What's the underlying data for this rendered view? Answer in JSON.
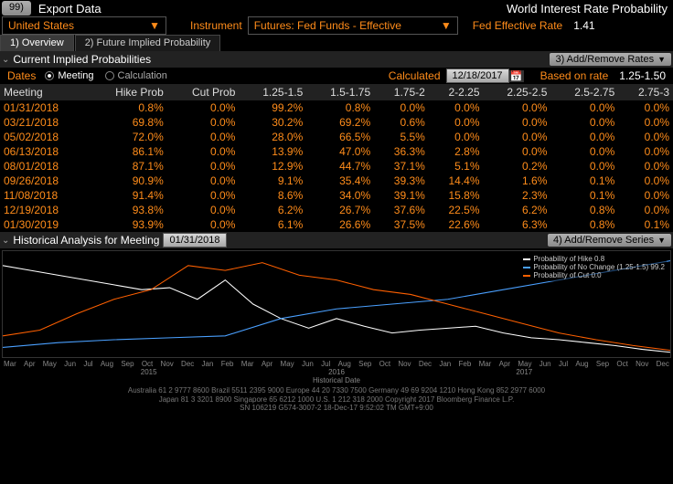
{
  "topbar": {
    "export_btn": "99)",
    "export_label": "Export Data",
    "title": "World Interest Rate Probability"
  },
  "controls": {
    "country": "United States",
    "instrument_label": "Instrument",
    "instrument_value": "Futures: Fed Funds - Effective",
    "rate_label": "Fed Effective Rate",
    "rate_value": "1.41"
  },
  "tabs": {
    "t1": "1) Overview",
    "t2": "2) Future Implied Probability"
  },
  "section1": {
    "title": "Current Implied Probabilities",
    "addremove": "3) Add/Remove Rates"
  },
  "filters": {
    "dates_label": "Dates",
    "meeting_label": "Meeting",
    "calc_label": "Calculation",
    "calculated_label": "Calculated",
    "calc_date": "12/18/2017",
    "based_label": "Based on rate",
    "based_value": "1.25-1.50"
  },
  "table": {
    "headers": [
      "Meeting",
      "Hike Prob",
      "Cut Prob",
      "1.25-1.5",
      "1.5-1.75",
      "1.75-2",
      "2-2.25",
      "2.25-2.5",
      "2.5-2.75",
      "2.75-3"
    ],
    "rows": [
      [
        "01/31/2018",
        "0.8%",
        "0.0%",
        "99.2%",
        "0.8%",
        "0.0%",
        "0.0%",
        "0.0%",
        "0.0%",
        "0.0%"
      ],
      [
        "03/21/2018",
        "69.8%",
        "0.0%",
        "30.2%",
        "69.2%",
        "0.6%",
        "0.0%",
        "0.0%",
        "0.0%",
        "0.0%"
      ],
      [
        "05/02/2018",
        "72.0%",
        "0.0%",
        "28.0%",
        "66.5%",
        "5.5%",
        "0.0%",
        "0.0%",
        "0.0%",
        "0.0%"
      ],
      [
        "06/13/2018",
        "86.1%",
        "0.0%",
        "13.9%",
        "47.0%",
        "36.3%",
        "2.8%",
        "0.0%",
        "0.0%",
        "0.0%"
      ],
      [
        "08/01/2018",
        "87.1%",
        "0.0%",
        "12.9%",
        "44.7%",
        "37.1%",
        "5.1%",
        "0.2%",
        "0.0%",
        "0.0%"
      ],
      [
        "09/26/2018",
        "90.9%",
        "0.0%",
        "9.1%",
        "35.4%",
        "39.3%",
        "14.4%",
        "1.6%",
        "0.1%",
        "0.0%"
      ],
      [
        "11/08/2018",
        "91.4%",
        "0.0%",
        "8.6%",
        "34.0%",
        "39.1%",
        "15.8%",
        "2.3%",
        "0.1%",
        "0.0%"
      ],
      [
        "12/19/2018",
        "93.8%",
        "0.0%",
        "6.2%",
        "26.7%",
        "37.6%",
        "22.5%",
        "6.2%",
        "0.8%",
        "0.0%"
      ],
      [
        "01/30/2019",
        "93.9%",
        "0.0%",
        "6.1%",
        "26.6%",
        "37.5%",
        "22.6%",
        "6.3%",
        "0.8%",
        "0.1%"
      ]
    ]
  },
  "section2": {
    "title": "Historical Analysis for Meeting",
    "meeting_date": "01/31/2018",
    "addremove": "4) Add/Remove Series"
  },
  "legend": {
    "l1": "Probability of Hike",
    "l1v": "0.8",
    "l2": "Probability of No Change (1.25-1.5)",
    "l2v": "99.2",
    "l3": "Probability of Cut",
    "l3v": "0.0",
    "c1": "#ffffff",
    "c2": "#4aa0ff",
    "c3": "#ff6000"
  },
  "chart": {
    "months": [
      "Mar",
      "Apr",
      "May",
      "Jun",
      "Jul",
      "Aug",
      "Sep",
      "Oct",
      "Nov",
      "Dec",
      "Jan",
      "Feb",
      "Mar",
      "Apr",
      "May",
      "Jun",
      "Jul",
      "Aug",
      "Sep",
      "Oct",
      "Nov",
      "Dec",
      "Jan",
      "Feb",
      "Mar",
      "Apr",
      "May",
      "Jun",
      "Jul",
      "Aug",
      "Sep",
      "Oct",
      "Nov",
      "Dec"
    ],
    "years": [
      "2015",
      "2016",
      "2017"
    ],
    "xlabel": "Historical Date"
  },
  "footer": {
    "line1": "Australia 61 2 9777 8600 Brazil 5511 2395 9000 Europe 44 20 7330 7500 Germany 49 69 9204 1210 Hong Kong 852 2977 6000",
    "line2": "Japan 81 3 3201 8900        Singapore 65 6212 1000        U.S. 1 212 318 2000        Copyright 2017 Bloomberg Finance L.P.",
    "line3": "SN 106219 G574-3007-2 18-Dec-17  9:52:02  TM  GMT+9:00"
  }
}
